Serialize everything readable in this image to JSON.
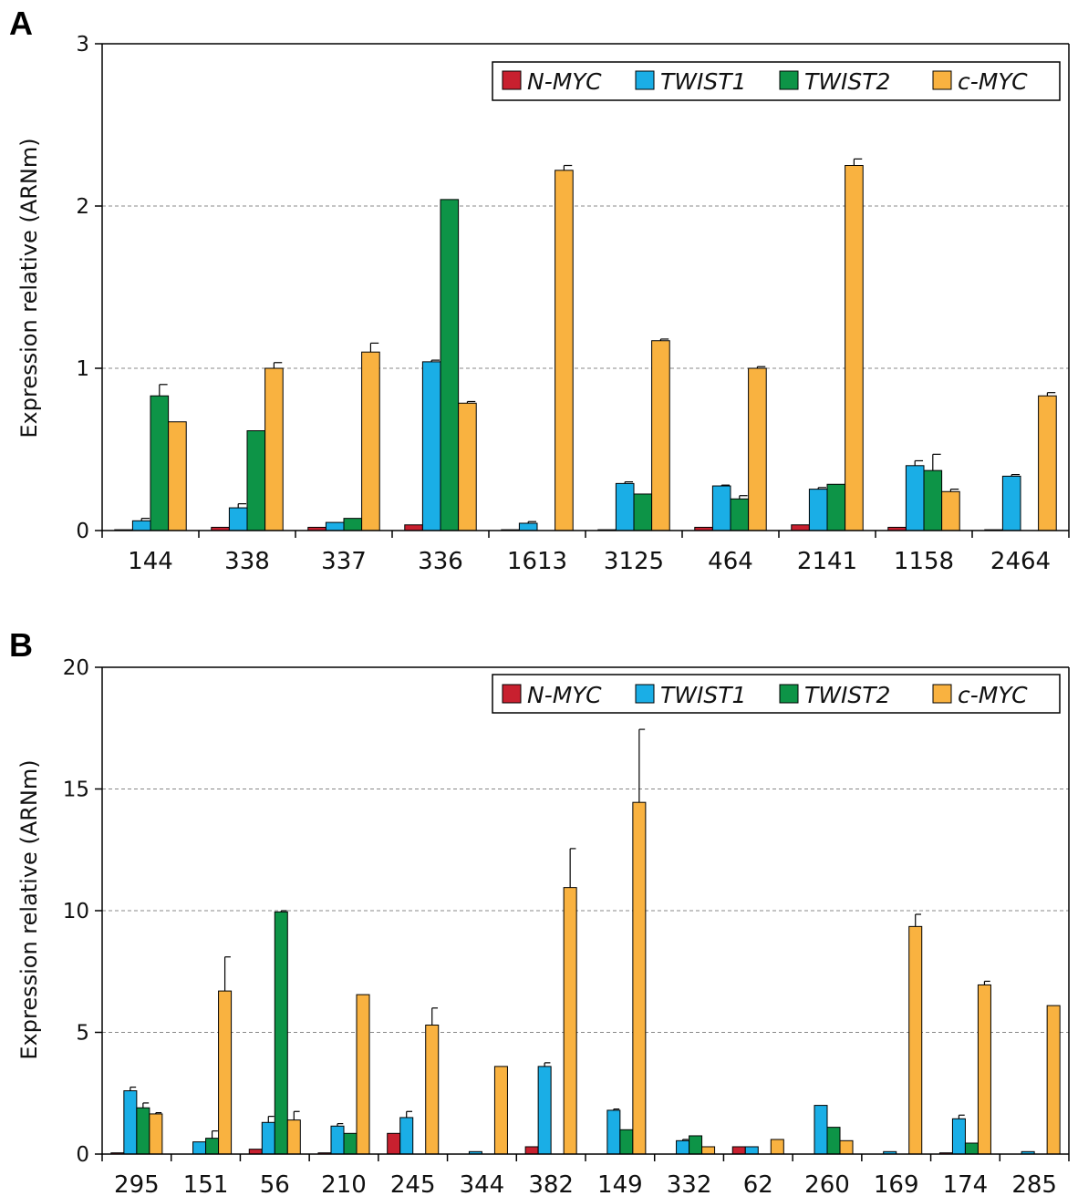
{
  "colors": {
    "N-MYC": "#c8202f",
    "TWIST1": "#1aaee6",
    "TWIST2": "#0d9447",
    "c-MYC": "#f9b240",
    "axis": "#000000",
    "grid": "#888888"
  },
  "chart_data": [
    {
      "type": "bar",
      "panel": "A",
      "ylabel": "Expression relative (ARNm)",
      "ylim": [
        0,
        3
      ],
      "yticks": [
        0,
        1,
        2,
        3
      ],
      "grid": "dashed horizontal at major ticks",
      "legend_position": "top-right",
      "categories": [
        "144",
        "338",
        "337",
        "336",
        "1613",
        "3125",
        "464",
        "2141",
        "1158",
        "2464"
      ],
      "series": [
        {
          "name": "N-MYC",
          "values": [
            0.005,
            0.02,
            0.02,
            0.035,
            0.005,
            0.005,
            0.02,
            0.035,
            0.02,
            0.005
          ],
          "errors": [
            0,
            0,
            0,
            0,
            0,
            0,
            0,
            0,
            0,
            0
          ]
        },
        {
          "name": "TWIST1",
          "values": [
            0.06,
            0.14,
            0.05,
            1.04,
            0.045,
            0.29,
            0.275,
            0.255,
            0.4,
            0.335
          ],
          "errors": [
            0.015,
            0.025,
            0,
            0.01,
            0.01,
            0.01,
            0.005,
            0.01,
            0.03,
            0.01
          ]
        },
        {
          "name": "TWIST2",
          "values": [
            0.83,
            0.615,
            0.075,
            2.04,
            0,
            0.225,
            0.195,
            0.285,
            0.37,
            0
          ],
          "errors": [
            0.07,
            0,
            0,
            0,
            0,
            0,
            0.02,
            0,
            0.1,
            0
          ]
        },
        {
          "name": "c-MYC",
          "values": [
            0.67,
            1.0,
            1.1,
            0.785,
            2.22,
            1.17,
            1.0,
            2.25,
            0.24,
            0.83
          ],
          "errors": [
            0,
            0.035,
            0.055,
            0.01,
            0.03,
            0.01,
            0.01,
            0.04,
            0.015,
            0.02
          ]
        }
      ]
    },
    {
      "type": "bar",
      "panel": "B",
      "ylabel": "Expression relative (ARNm)",
      "ylim": [
        0,
        20
      ],
      "yticks": [
        0,
        5,
        10,
        15,
        20
      ],
      "grid": "dashed horizontal at major ticks",
      "legend_position": "top-right",
      "categories": [
        "295",
        "151",
        "56",
        "210",
        "245",
        "344",
        "382",
        "149",
        "332",
        "62",
        "260",
        "169",
        "174",
        "285"
      ],
      "series": [
        {
          "name": "N-MYC",
          "values": [
            0.05,
            0,
            0.2,
            0.05,
            0.85,
            0,
            0.3,
            0,
            0,
            0.3,
            0,
            0,
            0.05,
            0
          ],
          "errors": [
            0,
            0,
            0,
            0,
            0,
            0,
            0,
            0,
            0,
            0,
            0,
            0,
            0,
            0
          ]
        },
        {
          "name": "TWIST1",
          "values": [
            2.6,
            0.5,
            1.3,
            1.15,
            1.5,
            0.1,
            3.6,
            1.8,
            0.55,
            0.3,
            2.0,
            0.1,
            1.45,
            0.1
          ],
          "errors": [
            0.15,
            0,
            0.25,
            0.1,
            0.25,
            0,
            0.15,
            0.05,
            0.05,
            0,
            0,
            0,
            0.15,
            0
          ]
        },
        {
          "name": "TWIST2",
          "values": [
            1.9,
            0.65,
            9.95,
            0.85,
            0,
            0,
            0,
            1.0,
            0.75,
            0,
            1.1,
            0,
            0.45,
            0
          ],
          "errors": [
            0.2,
            0.3,
            0.05,
            0,
            0,
            0,
            0,
            0,
            0,
            0,
            0,
            0,
            0,
            0
          ]
        },
        {
          "name": "c-MYC",
          "values": [
            1.65,
            6.7,
            1.4,
            6.55,
            5.3,
            3.6,
            10.95,
            14.45,
            0.3,
            0.6,
            0.55,
            9.35,
            6.95,
            6.1
          ],
          "errors": [
            0.05,
            1.4,
            0.35,
            0,
            0.7,
            0,
            1.6,
            3.0,
            0,
            0,
            0,
            0.5,
            0.15,
            0
          ]
        }
      ]
    }
  ]
}
